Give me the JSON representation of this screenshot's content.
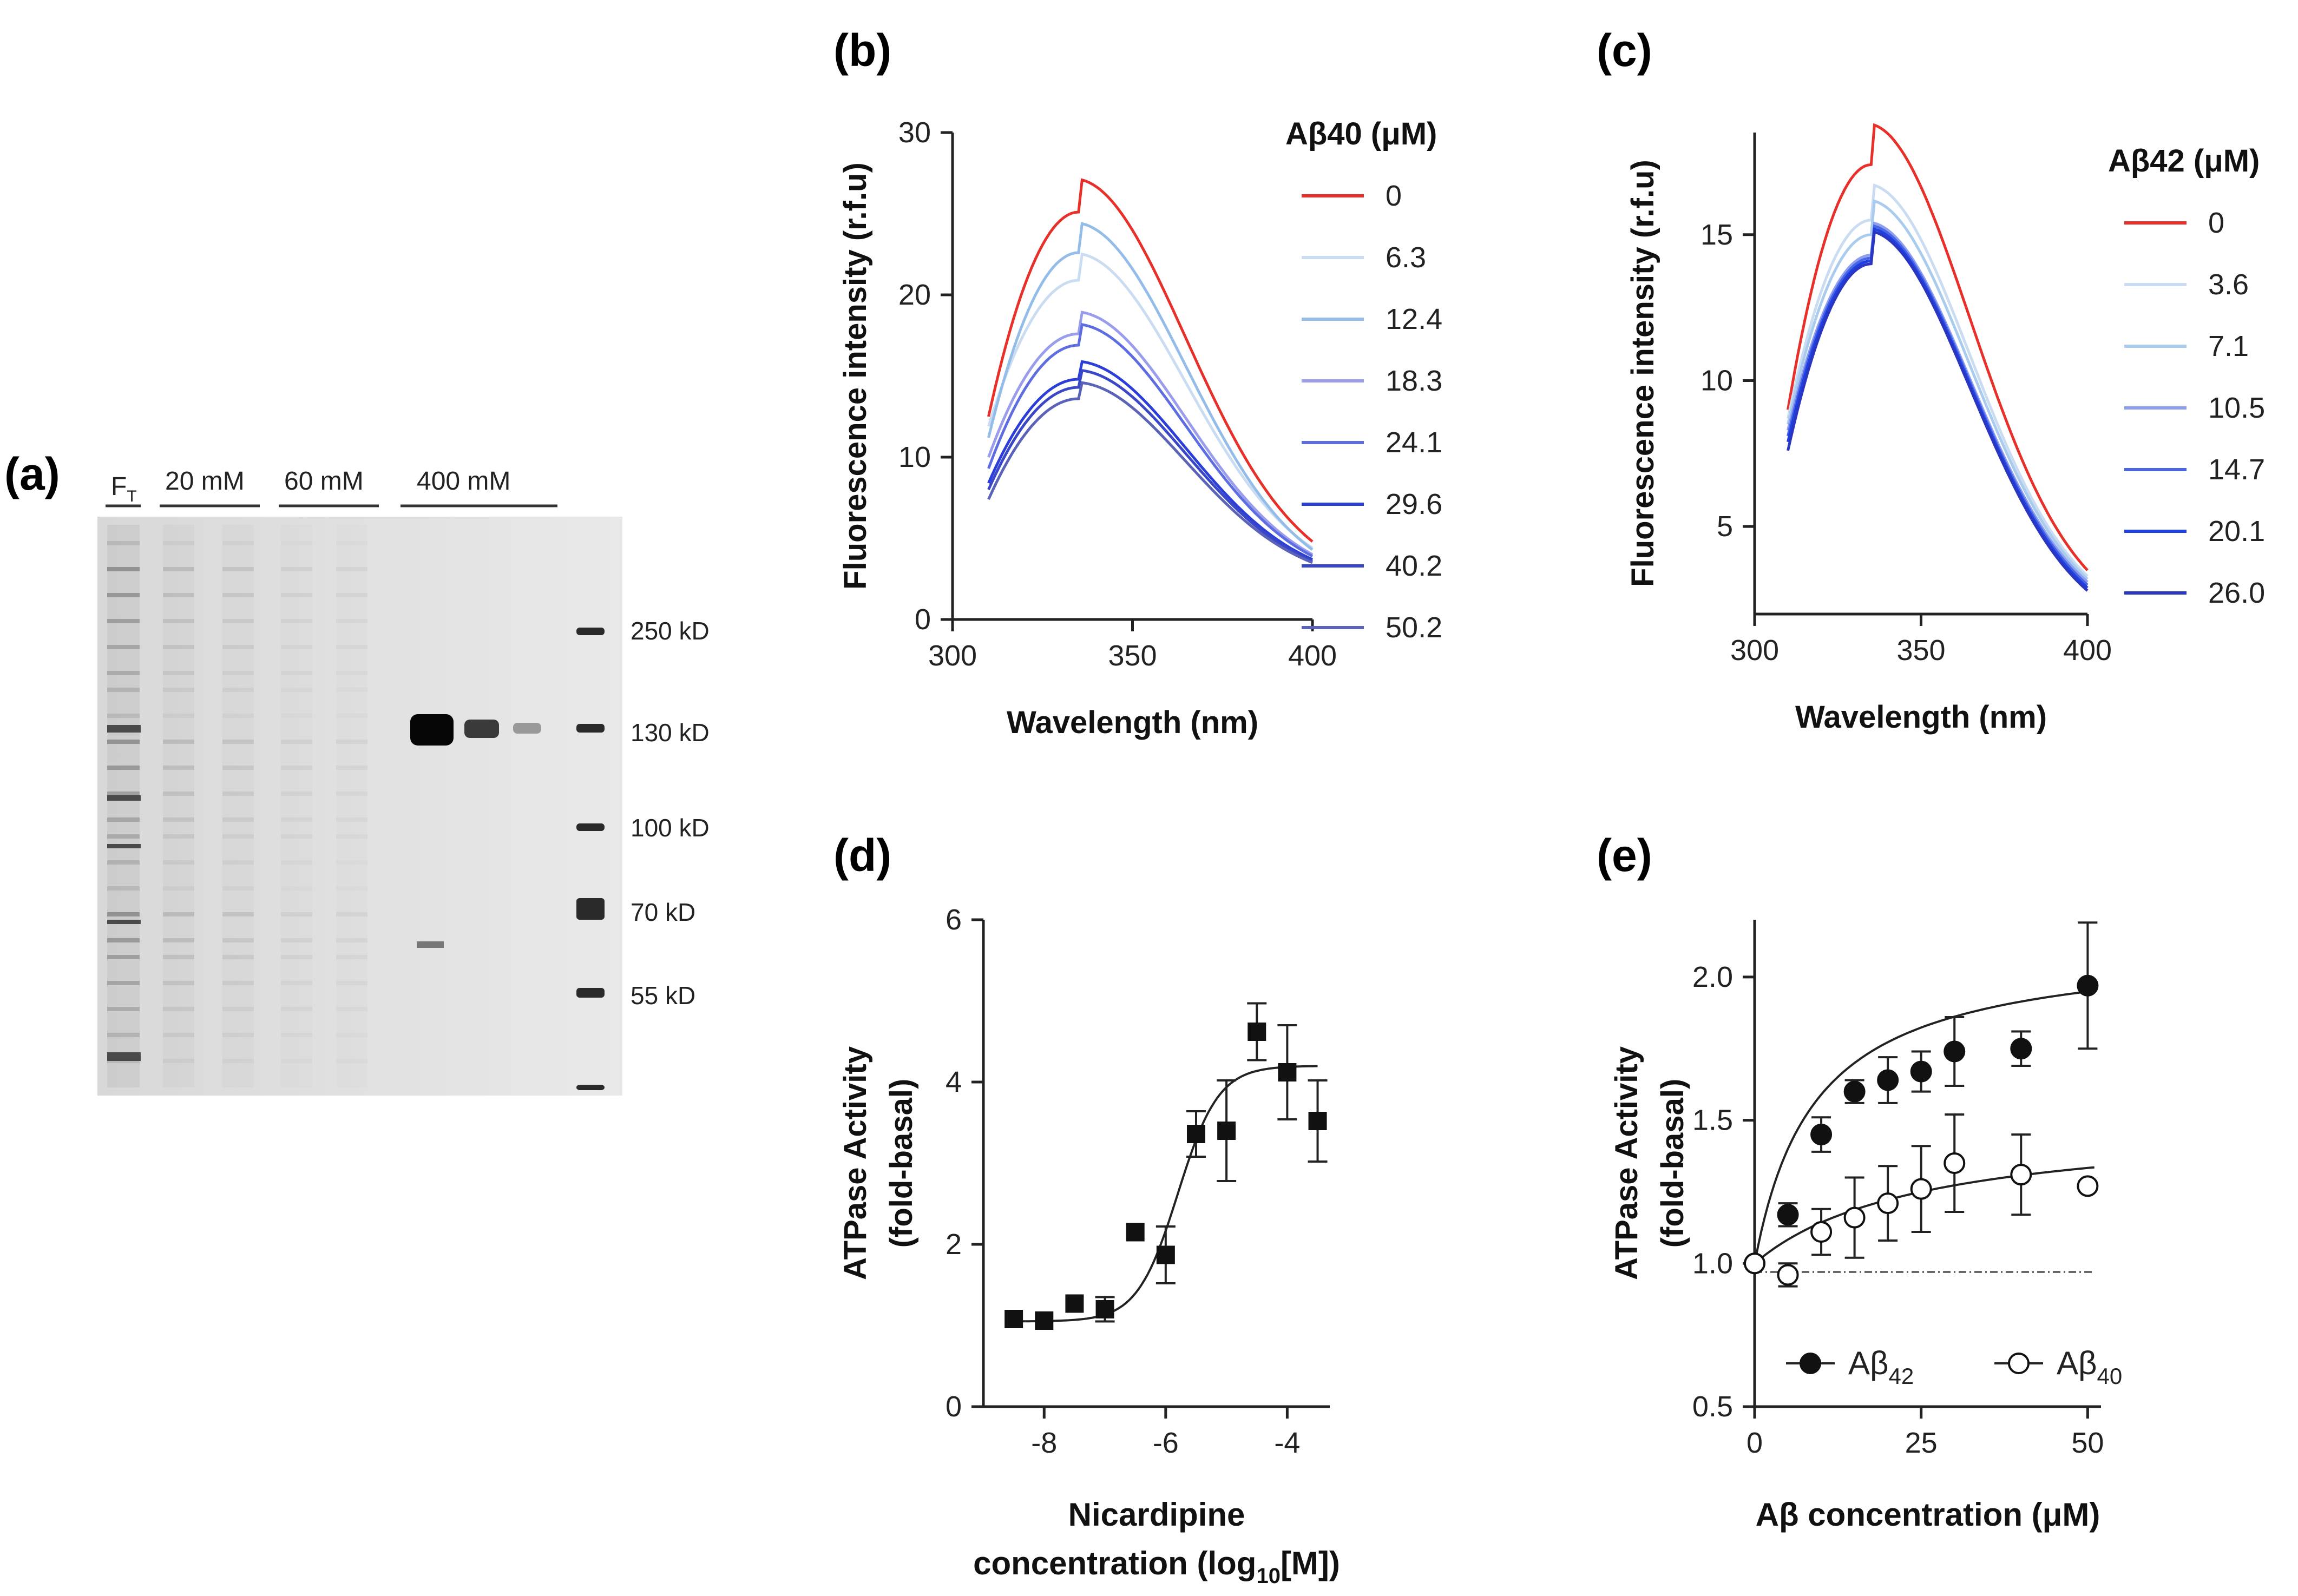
{
  "panel_labels": {
    "a": "(a)",
    "b": "(b)",
    "c": "(c)",
    "d": "(d)",
    "e": "(e)"
  },
  "gel": {
    "lane_groups": [
      {
        "label": "F",
        "subscript": "T"
      },
      {
        "label": "20 mM"
      },
      {
        "label": "60 mM"
      },
      {
        "label": "400 mM"
      }
    ],
    "markers": [
      "250 kD",
      "130 kD",
      "100 kD",
      "70 kD",
      "55 kD"
    ]
  },
  "chart_data": [
    {
      "id": "b",
      "type": "line",
      "xlabel": "Wavelength (nm)",
      "ylabel": "Fluorescence intensity (r.f.u)",
      "xlim": [
        300,
        400
      ],
      "ylim": [
        0,
        30
      ],
      "xticks": [
        300,
        350,
        400
      ],
      "yticks": [
        0,
        10,
        20,
        30
      ],
      "legend_title": "Aβ40 (μM)",
      "x_start": 310,
      "x_end": 400,
      "series": [
        {
          "name": "0",
          "color": "#e8302a",
          "start": 12.5,
          "peak": 25.1,
          "end": 4.8
        },
        {
          "name": "6.3",
          "color": "#c9dcf2",
          "start": 11.9,
          "peak": 20.9,
          "end": 4.4
        },
        {
          "name": "12.4",
          "color": "#93bde8",
          "start": 11.2,
          "peak": 22.6,
          "end": 4.3
        },
        {
          "name": "18.3",
          "color": "#9a9cec",
          "start": 10.0,
          "peak": 17.6,
          "end": 4.0
        },
        {
          "name": "24.1",
          "color": "#5e6ee0",
          "start": 9.3,
          "peak": 16.9,
          "end": 3.9
        },
        {
          "name": "29.6",
          "color": "#2b3fd8",
          "start": 8.4,
          "peak": 14.8,
          "end": 3.7
        },
        {
          "name": "40.2",
          "color": "#3a48c8",
          "start": 8.0,
          "peak": 14.3,
          "end": 3.6
        },
        {
          "name": "50.2",
          "color": "#5a63b8",
          "start": 7.4,
          "peak": 13.6,
          "end": 3.5
        }
      ]
    },
    {
      "id": "c",
      "type": "line",
      "xlabel": "Wavelength (nm)",
      "ylabel": "Fluorescence intensity (r.f.u)",
      "xlim": [
        300,
        400
      ],
      "ylim": [
        2,
        18.5
      ],
      "xticks": [
        300,
        350,
        400
      ],
      "yticks": [
        5,
        10,
        15
      ],
      "legend_title": "Aβ42 (μM)",
      "x_start": 310,
      "x_end": 400,
      "series": [
        {
          "name": "0",
          "color": "#e8302a",
          "start": 9.0,
          "peak": 17.4,
          "end": 3.5
        },
        {
          "name": "3.6",
          "color": "#c9dcf2",
          "start": 8.7,
          "peak": 15.5,
          "end": 3.3
        },
        {
          "name": "7.1",
          "color": "#a8cbee",
          "start": 8.5,
          "peak": 15.0,
          "end": 3.2
        },
        {
          "name": "10.5",
          "color": "#8f9ff0",
          "start": 8.3,
          "peak": 14.3,
          "end": 3.1
        },
        {
          "name": "14.7",
          "color": "#4a66e4",
          "start": 8.1,
          "peak": 14.2,
          "end": 3.0
        },
        {
          "name": "20.1",
          "color": "#1f3fe0",
          "start": 7.9,
          "peak": 14.1,
          "end": 2.9
        },
        {
          "name": "26.0",
          "color": "#2a36c0",
          "start": 7.6,
          "peak": 14.0,
          "end": 2.8
        }
      ]
    },
    {
      "id": "d",
      "type": "scatter",
      "xlabel_line1": "Nicardipine",
      "xlabel_line2": "concentration (log",
      "xlabel_sub": "10",
      "xlabel_line2_end": "[M])",
      "ylabel_line1": "ATPase Activity",
      "ylabel_line2": "(fold-basal)",
      "xlim": [
        -9,
        -3.3
      ],
      "ylim": [
        0,
        6
      ],
      "xticks": [
        -8,
        -6,
        -4
      ],
      "yticks": [
        0,
        2,
        4,
        6
      ],
      "points": [
        {
          "x": -8.5,
          "y": 1.08,
          "err": 0
        },
        {
          "x": -8.0,
          "y": 1.06,
          "err": 0
        },
        {
          "x": -7.5,
          "y": 1.27,
          "err": 0
        },
        {
          "x": -7.0,
          "y": 1.2,
          "err": 0.15
        },
        {
          "x": -6.5,
          "y": 2.15,
          "err": 0
        },
        {
          "x": -6.0,
          "y": 1.87,
          "err": 0.35
        },
        {
          "x": -5.5,
          "y": 3.36,
          "err": 0.28
        },
        {
          "x": -5.0,
          "y": 3.4,
          "err": 0.62
        },
        {
          "x": -4.5,
          "y": 4.62,
          "err": 0.35
        },
        {
          "x": -4.0,
          "y": 4.12,
          "err": 0.58
        },
        {
          "x": -3.5,
          "y": 3.52,
          "err": 0.5
        }
      ],
      "fit": {
        "bottom": 1.05,
        "top": 4.2,
        "logEC50": -5.8,
        "hill": 1.3,
        "x_from": -8.5,
        "x_to": -3.5
      }
    },
    {
      "id": "e",
      "type": "scatter",
      "xlabel": "Aβ concentration (μM)",
      "ylabel_line1": "ATPase Activity",
      "ylabel_line2": "(fold-basal)",
      "xlim": [
        0,
        52
      ],
      "ylim": [
        0.5,
        2.2
      ],
      "xticks": [
        0,
        25,
        50
      ],
      "yticks": [
        0.5,
        1.0,
        1.5,
        2.0
      ],
      "baseline": 0.97,
      "legend": [
        {
          "name": "Aβ",
          "sub": "42",
          "filled": true
        },
        {
          "name": "Aβ",
          "sub": "40",
          "filled": false
        }
      ],
      "series": [
        {
          "name": "Aβ42",
          "filled": true,
          "points": [
            {
              "x": 0,
              "y": 1.0,
              "err": 0
            },
            {
              "x": 5,
              "y": 1.17,
              "err": 0.04
            },
            {
              "x": 10,
              "y": 1.45,
              "err": 0.06
            },
            {
              "x": 15,
              "y": 1.6,
              "err": 0.04
            },
            {
              "x": 20,
              "y": 1.64,
              "err": 0.08
            },
            {
              "x": 25,
              "y": 1.67,
              "err": 0.07
            },
            {
              "x": 30,
              "y": 1.74,
              "err": 0.12
            },
            {
              "x": 40,
              "y": 1.75,
              "err": 0.06
            },
            {
              "x": 50,
              "y": 1.97,
              "err": 0.22
            }
          ],
          "fit": {
            "y0": 1.0,
            "bmax": 1.12,
            "k": 9
          }
        },
        {
          "name": "Aβ40",
          "filled": false,
          "points": [
            {
              "x": 0,
              "y": 1.0,
              "err": 0
            },
            {
              "x": 5,
              "y": 0.96,
              "err": 0.04
            },
            {
              "x": 10,
              "y": 1.11,
              "err": 0.08
            },
            {
              "x": 15,
              "y": 1.16,
              "err": 0.14
            },
            {
              "x": 20,
              "y": 1.21,
              "err": 0.13
            },
            {
              "x": 25,
              "y": 1.26,
              "err": 0.15
            },
            {
              "x": 30,
              "y": 1.35,
              "err": 0.17
            },
            {
              "x": 40,
              "y": 1.31,
              "err": 0.14
            },
            {
              "x": 50,
              "y": 1.27,
              "err": 0
            }
          ],
          "fit": {
            "y0": 1.0,
            "bmax": 0.5,
            "k": 25
          }
        }
      ]
    }
  ]
}
